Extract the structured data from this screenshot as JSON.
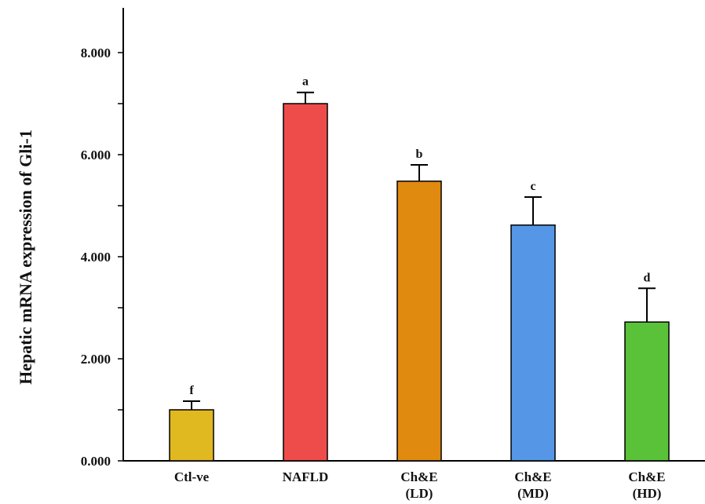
{
  "chart_data": {
    "type": "bar",
    "title": "",
    "xlabel": "",
    "ylabel": "Hepatic mRNA expression of Gli-1",
    "ylim": [
      0,
      8.8
    ],
    "y_ticks": [
      0,
      2,
      4,
      6,
      8
    ],
    "y_tick_labels": [
      "0.000",
      "2.000",
      "4.000",
      "6.000",
      "8.000"
    ],
    "grid": false,
    "categories": [
      {
        "label_lines": [
          "Ctl-ve"
        ],
        "value": 1.0,
        "error": 0.17,
        "sig": "f",
        "color": "#E0B820"
      },
      {
        "label_lines": [
          "NAFLD"
        ],
        "value": 7.0,
        "error": 0.22,
        "sig": "a",
        "color": "#EE4B4B"
      },
      {
        "label_lines": [
          "Ch&E",
          "(LD)"
        ],
        "value": 5.48,
        "error": 0.32,
        "sig": "b",
        "color": "#E08A10"
      },
      {
        "label_lines": [
          "Ch&E",
          "(MD)"
        ],
        "value": 4.62,
        "error": 0.55,
        "sig": "c",
        "color": "#5597E6"
      },
      {
        "label_lines": [
          "Ch&E",
          "(HD)"
        ],
        "value": 2.72,
        "error": 0.66,
        "sig": "d",
        "color": "#5AC238"
      }
    ]
  }
}
